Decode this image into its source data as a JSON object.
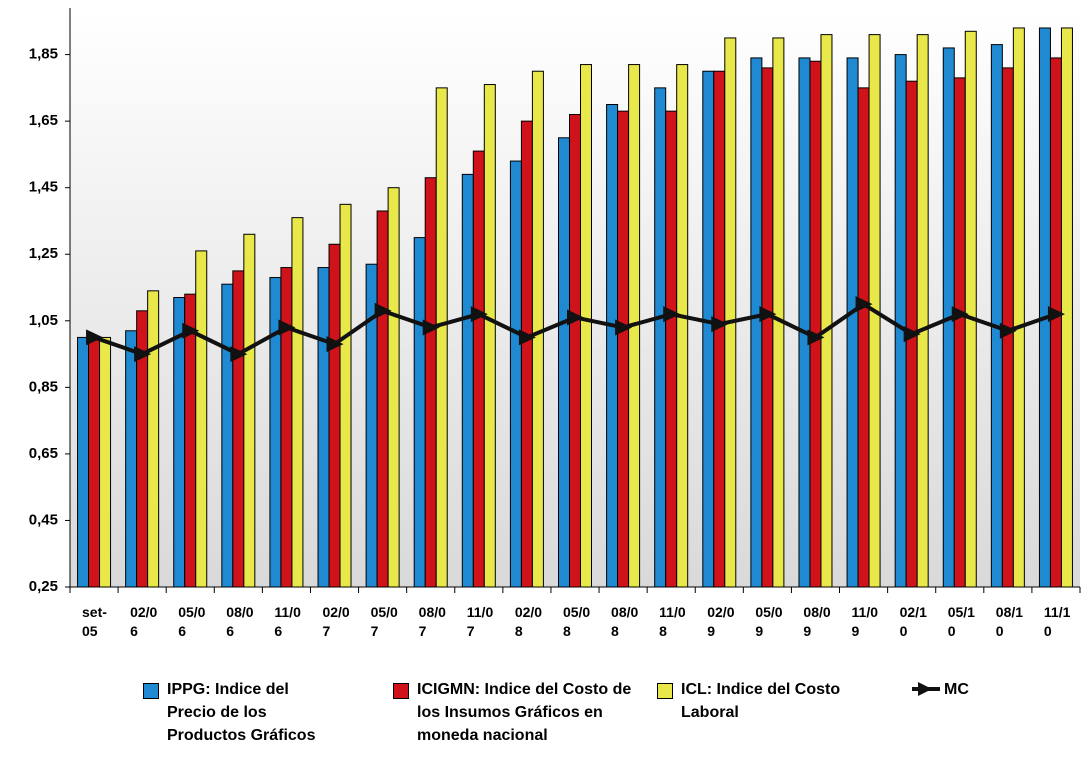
{
  "chart_data": {
    "type": "bar-line",
    "categories": [
      "set-05",
      "02/06",
      "05/06",
      "08/06",
      "11/06",
      "02/07",
      "05/07",
      "08/07",
      "11/07",
      "02/08",
      "05/08",
      "08/08",
      "11/08",
      "02/09",
      "05/09",
      "08/09",
      "11/09",
      "02/10",
      "05/10",
      "08/10",
      "11/10"
    ],
    "series": [
      {
        "name": "IPPG: Indice del Precio de los Productos Gráficos",
        "type": "bar",
        "color": "#1f8ad2",
        "values": [
          1.0,
          1.02,
          1.12,
          1.16,
          1.18,
          1.21,
          1.22,
          1.3,
          1.49,
          1.53,
          1.6,
          1.7,
          1.75,
          1.8,
          1.84,
          1.84,
          1.84,
          1.85,
          1.87,
          1.88,
          1.93
        ]
      },
      {
        "name": "ICIGMN: Indice del Costo de los Insumos Gráficos en moneda nacional",
        "type": "bar",
        "color": "#d0121b",
        "values": [
          1.0,
          1.08,
          1.13,
          1.2,
          1.21,
          1.28,
          1.38,
          1.48,
          1.56,
          1.65,
          1.67,
          1.68,
          1.68,
          1.8,
          1.81,
          1.83,
          1.75,
          1.77,
          1.78,
          1.81,
          1.84
        ]
      },
      {
        "name": "ICL: Indice del Costo Laboral",
        "type": "bar",
        "color": "#e8e84a",
        "values": [
          1.0,
          1.14,
          1.26,
          1.31,
          1.36,
          1.4,
          1.45,
          1.75,
          1.76,
          1.8,
          1.82,
          1.82,
          1.82,
          1.9,
          1.9,
          1.91,
          1.91,
          1.91,
          1.92,
          1.93,
          1.93
        ]
      },
      {
        "name": "MC",
        "type": "line",
        "color": "#111111",
        "values": [
          1.0,
          0.95,
          1.02,
          0.95,
          1.03,
          0.98,
          1.08,
          1.03,
          1.07,
          1.0,
          1.06,
          1.03,
          1.07,
          1.04,
          1.07,
          1.0,
          1.1,
          1.01,
          1.07,
          1.02,
          1.07
        ]
      }
    ],
    "ylim": [
      0.25,
      1.99
    ],
    "yticks": [
      {
        "value": 0.25,
        "label": "0,25"
      },
      {
        "value": 0.45,
        "label": "0,45"
      },
      {
        "value": 0.65,
        "label": "0,65"
      },
      {
        "value": 0.85,
        "label": "0,85"
      },
      {
        "value": 1.05,
        "label": "1,05"
      },
      {
        "value": 1.25,
        "label": "1,25"
      },
      {
        "value": 1.45,
        "label": "1,45"
      },
      {
        "value": 1.65,
        "label": "1,65"
      },
      {
        "value": 1.85,
        "label": "1,85"
      }
    ],
    "grid": false
  }
}
